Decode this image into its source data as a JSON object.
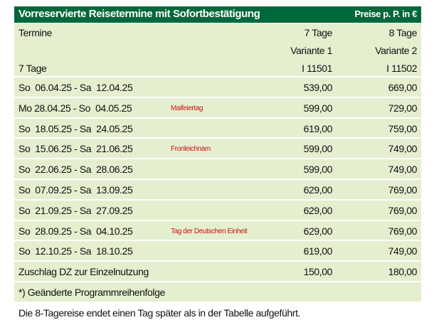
{
  "header": {
    "title": "Vorreservierte Reisetermine mit Sofortbestätigung",
    "price_note": "Preise p. P. in €"
  },
  "table": {
    "head": {
      "label": "Termine",
      "sub_label": "7 Tage",
      "col1": [
        "7 Tage",
        "Variante 1",
        "I 11501"
      ],
      "col2": [
        "8 Tage",
        "Variante 2",
        "I 11502"
      ]
    },
    "rows": [
      {
        "date": "So  06.04.25 - Sa  12.04.25",
        "v1": "539,00",
        "v2": "669,00"
      },
      {
        "date": "Mo 28.04.25 - So  04.05.25",
        "note": "Maifeiertag",
        "v1": "599,00",
        "v2": "729,00"
      },
      {
        "date": "So  18.05.25 - Sa  24.05.25",
        "v1": "619,00",
        "v2": "759,00"
      },
      {
        "date": "So  15.06.25 - Sa  21.06.25",
        "note": "Fronleichnam",
        "v1": "599,00",
        "v2": "749,00"
      },
      {
        "date": "So  22.06.25 - Sa  28.06.25",
        "v1": "599,00",
        "v2": "749,00"
      },
      {
        "date": "So  07.09.25 - Sa  13.09.25",
        "v1": "629,00",
        "v2": "769,00"
      },
      {
        "date": "So  21.09.25 - Sa  27.09.25",
        "v1": "629,00",
        "v2": "769,00"
      },
      {
        "date": "So  28.09.25 - Sa  04.10.25",
        "note": "Tag der Deutschen Einheit",
        "v1": "629,00",
        "v2": "769,00"
      },
      {
        "date": "So  12.10.25 - Sa  18.10.25",
        "v1": "619,00",
        "v2": "749,00"
      }
    ],
    "surcharge": {
      "label": "Zuschlag DZ zur Einzelnutzung",
      "v1": "150,00",
      "v2": "180,00"
    },
    "note": "*) Geänderte Programmreihenfolge"
  },
  "footer": "Die 8-Tagereise endet einen Tag später als in der Tabelle aufgeführt."
}
